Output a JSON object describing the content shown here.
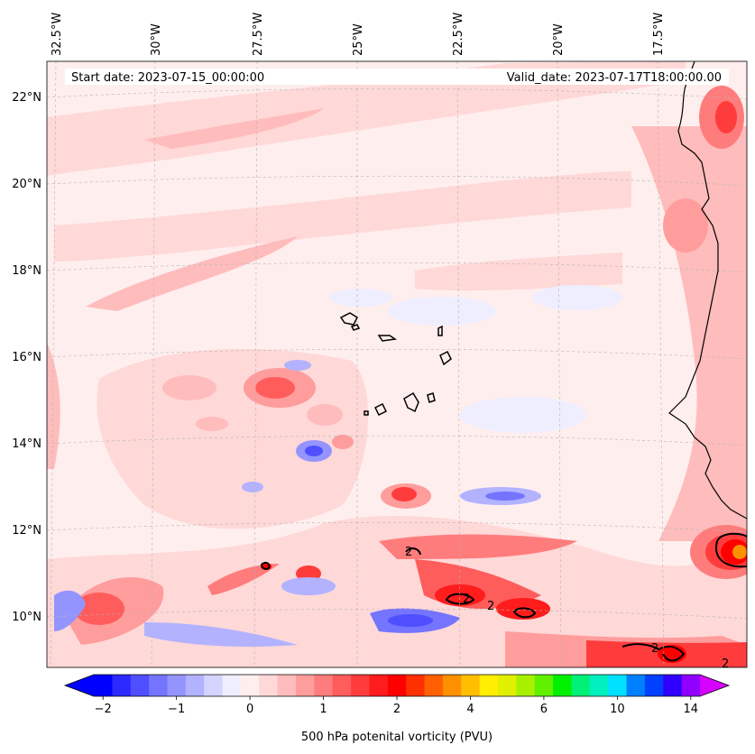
{
  "header": {
    "start_date": "Start date: 2023-07-15_00:00:00",
    "valid_date": "Valid_date: 2023-07-17T18:00:00.00"
  },
  "axes": {
    "lon_labels": [
      "32.5°W",
      "30°W",
      "27.5°W",
      "25°W",
      "22.5°W",
      "20°W",
      "17.5°W"
    ],
    "lat_labels": [
      "22°N",
      "20°N",
      "18°N",
      "16°N",
      "14°N",
      "12°N",
      "10°N"
    ]
  },
  "colorbar": {
    "label": "500 hPa potenital vorticity (PVU)",
    "tick_labels": [
      "−2",
      "−1",
      "0",
      "1",
      "2",
      "4",
      "6",
      "10",
      "14"
    ],
    "colors": [
      "#0000ff",
      "#2a2aff",
      "#4f4fff",
      "#7474ff",
      "#9494ff",
      "#b2b2ff",
      "#d4d4ff",
      "#eeeeff",
      "#ffeeee",
      "#ffd8d8",
      "#ffbcbc",
      "#ff9c9c",
      "#ff7c7c",
      "#ff5c5c",
      "#ff3c3c",
      "#ff1c1c",
      "#ff0000",
      "#ff3000",
      "#ff6000",
      "#ff9000",
      "#ffbf00",
      "#ffee00",
      "#e0f000",
      "#a8f000",
      "#60f000",
      "#00f000",
      "#00f078",
      "#00f0c0",
      "#00e0ff",
      "#0080ff",
      "#0040ff",
      "#3000ff",
      "#9000ff"
    ],
    "over_color": "#d600ff",
    "under_color": "#0000ff"
  },
  "contour_labels": [
    "2",
    "2",
    "2",
    "2",
    "2"
  ],
  "colors": {
    "background_field": "#ffeeee",
    "coastline": "#000000",
    "gridline": "#b4b4b4"
  }
}
